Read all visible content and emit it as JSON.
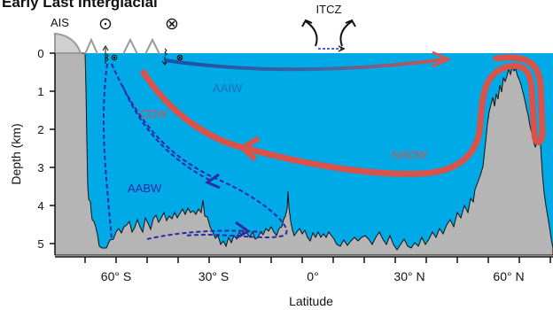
{
  "title": "Early Last Interglacial",
  "ais_label": "AIS",
  "itcz_label": "ITCZ",
  "symbols": {
    "out_of_page": "⊙",
    "into_page": "⊗"
  },
  "y_axis": {
    "label": "Depth (km)",
    "ticks": [
      "0",
      "1",
      "2",
      "3",
      "4",
      "5"
    ]
  },
  "x_axis": {
    "label": "Latitude",
    "ticks": [
      "60° S",
      "30° S",
      "0°",
      "30° N",
      "60° N"
    ]
  },
  "water_masses": {
    "aaiw": "AAIW",
    "cdw": "CDW",
    "nadw": "NADW",
    "aabw": "AABW"
  },
  "colors": {
    "ocean": "#00aae6",
    "seafloor": "#b5b5b5",
    "nadw_cdw": "#d9534a",
    "aaiw": "#1f6fb8",
    "aabw": "#2a2aa8",
    "ice": "#9a9a9a"
  }
}
